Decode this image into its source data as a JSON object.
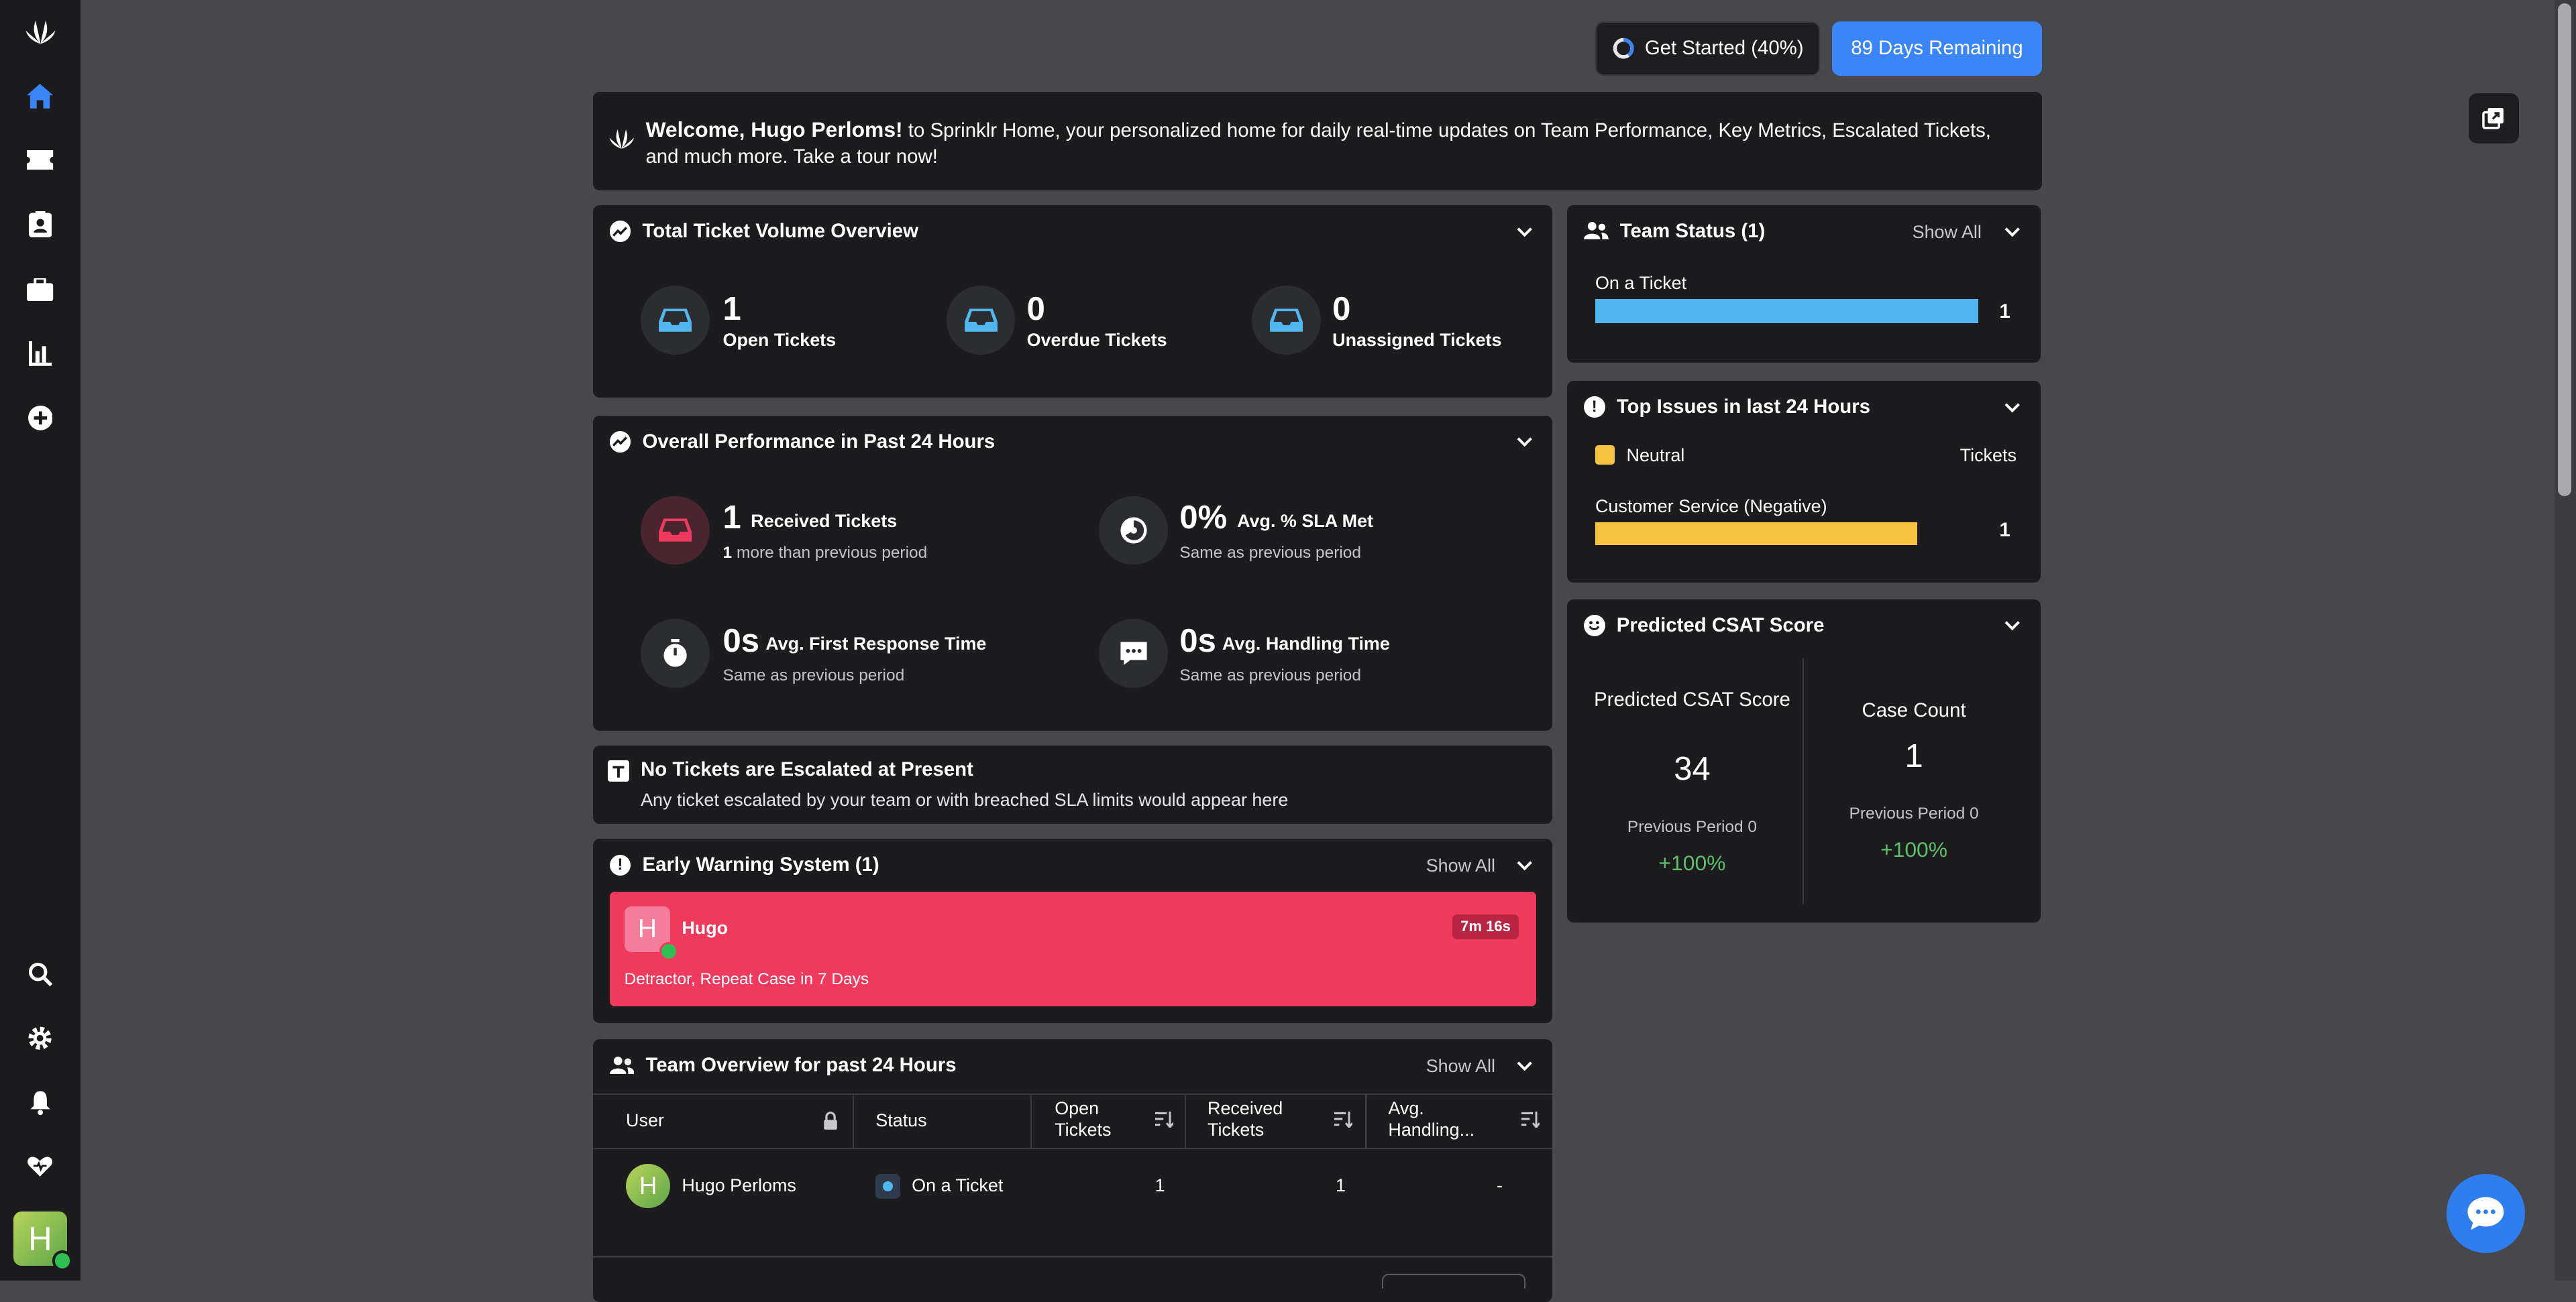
{
  "colors": {
    "page_bg": "#48474c",
    "card_bg": "#1c1c1e",
    "nav_bg": "#1b1b1d",
    "accent_blue": "#3a86f8",
    "warning_red": "#ef3a5d",
    "bar_blue": "#4fb6f0",
    "bar_yellow": "#f9c440",
    "positive_green": "#5cc06a"
  },
  "nav": {
    "icons": [
      "sprinklr-logo-icon",
      "home-icon",
      "ticket-icon",
      "contacts-icon",
      "briefcase-icon",
      "reports-icon",
      "add-icon",
      "search-icon",
      "settings-icon",
      "bell-icon",
      "care-icon"
    ],
    "avatar_initial": "H"
  },
  "top": {
    "get_started_label": "Get Started (40%)",
    "get_started_progress": 0.4,
    "trial_label": "89 Days Remaining"
  },
  "welcome": {
    "name_text": "Welcome, Hugo Perloms!",
    "message": " to Sprinklr Home, your personalized home for daily real-time updates on Team Performance, Key Metrics, Escalated Tickets, and much more. Take a tour now!"
  },
  "ticket_volume": {
    "title": "Total Ticket Volume Overview",
    "stats": [
      {
        "value": "1",
        "label": "Open Tickets"
      },
      {
        "value": "0",
        "label": "Overdue Tickets"
      },
      {
        "value": "0",
        "label": "Unassigned Tickets"
      }
    ]
  },
  "performance": {
    "title": "Overall Performance in Past 24 Hours",
    "received": {
      "value": "1",
      "label": "Received Tickets",
      "delta_bold": "1",
      "delta_text": " more than previous period"
    },
    "sla": {
      "value": "0%",
      "label": "Avg. % SLA Met",
      "sub": "Same as previous period"
    },
    "first_response": {
      "value": "0s",
      "label": "Avg. First Response Time",
      "sub": "Same as previous period"
    },
    "handling": {
      "value": "0s",
      "label": "Avg. Handling Time",
      "sub": "Same as previous period"
    }
  },
  "escalated": {
    "title": "No Tickets are Escalated at Present",
    "message": "Any ticket escalated by your team or with breached SLA limits would appear here"
  },
  "early_warning": {
    "title": "Early Warning System (1)",
    "show_all": "Show All",
    "item": {
      "initial": "H",
      "name": "Hugo",
      "time": "7m 16s",
      "reason": "Detractor, Repeat Case in 7 Days"
    }
  },
  "team_overview": {
    "title": "Team Overview for past 24 Hours",
    "show_all": "Show All",
    "columns": [
      "User",
      "Status",
      "Open Tickets",
      "Received Tickets",
      "Avg. Handling..."
    ],
    "rows": [
      {
        "initial": "H",
        "user": "Hugo Perloms",
        "status": "On a Ticket",
        "open": "1",
        "received": "1",
        "handling": "-"
      }
    ]
  },
  "team_status": {
    "title": "Team Status (1)",
    "show_all": "Show All",
    "item": {
      "label": "On a Ticket",
      "count": "1",
      "fill": 1.0
    }
  },
  "top_issues": {
    "title": "Top Issues in last 24 Hours",
    "legend": "Neutral",
    "column_label": "Tickets",
    "item": {
      "label": "Customer Service (Negative)",
      "count": "1",
      "fill": 1.0
    }
  },
  "csat": {
    "title": "Predicted CSAT Score",
    "left": {
      "label": "Predicted CSAT Score",
      "value": "34",
      "prev": "Previous Period 0",
      "change": "+100%"
    },
    "right": {
      "label": "Case Count",
      "value": "1",
      "prev": "Previous Period 0",
      "change": "+100%"
    }
  }
}
